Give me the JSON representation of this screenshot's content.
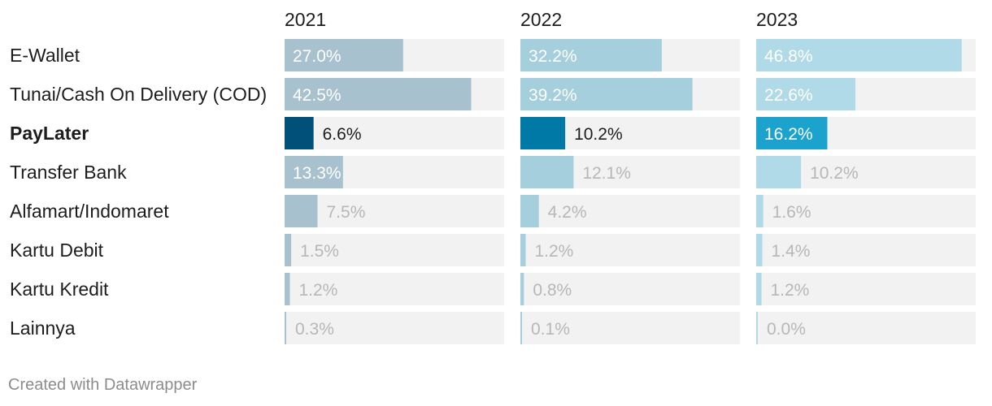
{
  "chart_data": {
    "type": "bar",
    "categories": [
      "E-Wallet",
      "Tunai/Cash On Delivery (COD)",
      "PayLater",
      "Transfer Bank",
      "Alfamart/Indomaret",
      "Kartu Debit",
      "Kartu Kredit",
      "Lainnya"
    ],
    "highlight_category": "PayLater",
    "xlim": [
      0,
      50
    ],
    "grid": false,
    "series": [
      {
        "name": "2021",
        "values": [
          27.0,
          42.5,
          6.6,
          13.3,
          7.5,
          1.5,
          1.2,
          0.3
        ],
        "labels": [
          "27.0%",
          "42.5%",
          "6.6%",
          "13.3%",
          "7.5%",
          "1.5%",
          "1.2%",
          "0.3%"
        ],
        "color": "#a8c1ce",
        "highlight_color": "#00507a"
      },
      {
        "name": "2022",
        "values": [
          32.2,
          39.2,
          10.2,
          12.1,
          4.2,
          1.2,
          0.8,
          0.1
        ],
        "labels": [
          "32.2%",
          "39.2%",
          "10.2%",
          "12.1%",
          "4.2%",
          "1.2%",
          "0.8%",
          "0.1%"
        ],
        "color": "#a5cfdc",
        "highlight_color": "#0079a6"
      },
      {
        "name": "2023",
        "values": [
          46.8,
          22.6,
          16.2,
          10.2,
          1.6,
          1.4,
          1.2,
          0.0
        ],
        "labels": [
          "46.8%",
          "22.6%",
          "16.2%",
          "10.2%",
          "1.6%",
          "1.4%",
          "1.2%",
          "0.0%"
        ],
        "color": "#b0dae8",
        "highlight_color": "#1ba3ce"
      }
    ],
    "track_color": "#f2f2f2"
  },
  "footer": {
    "credit": "Created with Datawrapper"
  }
}
